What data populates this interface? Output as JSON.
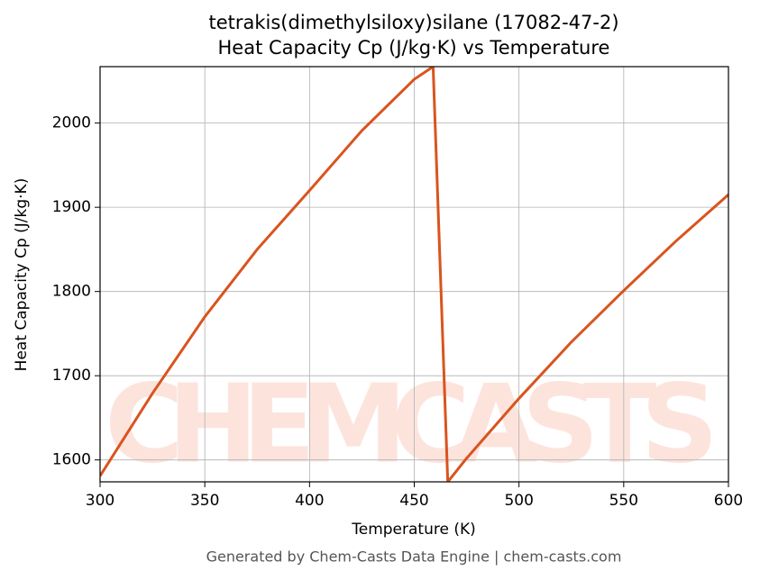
{
  "chart_data": {
    "type": "line",
    "title": "tetrakis(dimethylsiloxy)silane (17082-47-2)",
    "subtitle": "Heat Capacity Cp (J/kg·K) vs Temperature",
    "x_label": "Temperature (K)",
    "y_label": "Heat Capacity Cp (J/kg·K)",
    "watermark": "CHEMCASTS",
    "footer": "Generated by Chem-Casts Data Engine | chem-casts.com",
    "x": [
      300,
      325,
      350,
      375,
      400,
      425,
      450,
      459,
      466,
      475,
      500,
      525,
      550,
      575,
      600
    ],
    "series": [
      {
        "name": "Heat Capacity Cp",
        "color": "#d9541e",
        "values": [
          1581,
          1679,
          1770,
          1850,
          1920,
          1991,
          2052,
          2067,
          1574,
          1602,
          1673,
          1740,
          1801,
          1860,
          1915
        ]
      }
    ],
    "xlim": [
      300,
      600
    ],
    "xticks": [
      300,
      350,
      400,
      450,
      500,
      550,
      600
    ],
    "ylim": [
      1574,
      2067
    ],
    "yticks": [
      1600,
      1700,
      1800,
      1900,
      2000
    ],
    "grid": true
  }
}
